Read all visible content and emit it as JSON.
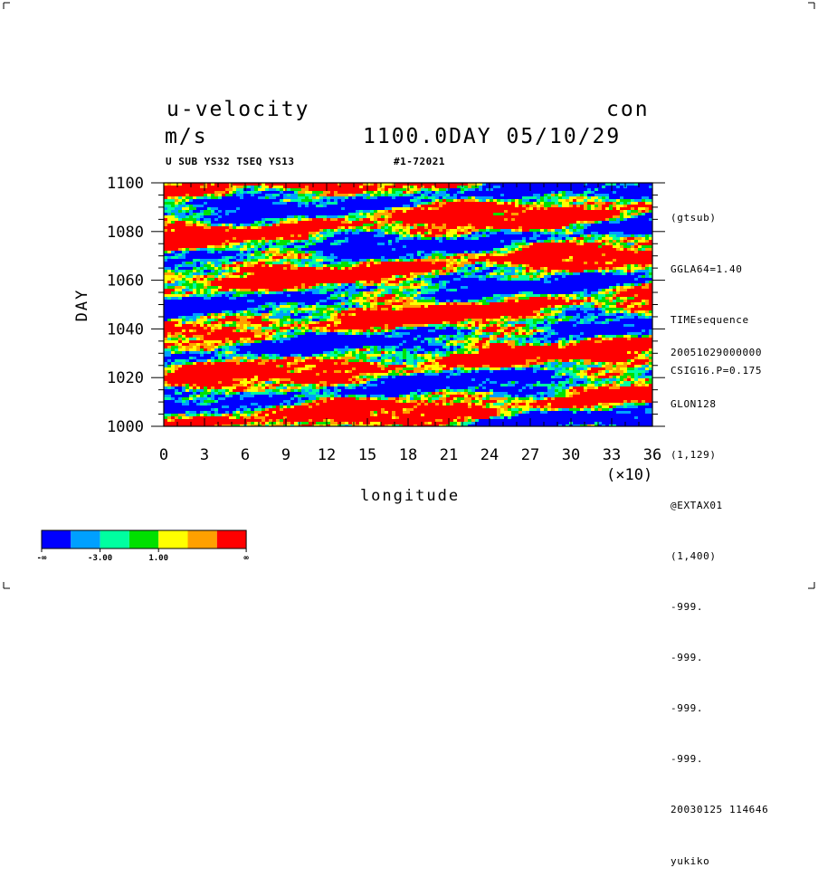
{
  "header": {
    "title": "u-velocity",
    "units": "m/s",
    "kind": "con",
    "time": "1100.0DAY 05/10/29",
    "subtitle": "U SUB YS32 TSEQ YS13",
    "id_code": "#1-72021"
  },
  "side_info": {
    "top": [
      "(gtsub)",
      "GGLA64=1.40",
      "TIMEsequence",
      "CSIG16.P=0.175"
    ],
    "bottom": [
      "20051029000000",
      "GLON128",
      "(1,129)",
      "@EXTAX01",
      "(1,400)",
      "-999.",
      "-999.",
      "-999.",
      "-999.",
      "20030125 114646",
      "yukiko"
    ]
  },
  "colorbar": {
    "colors": [
      "#0000ff",
      "#00a0ff",
      "#00ffa0",
      "#00e000",
      "#ffff00",
      "#ffa000",
      "#ff0000"
    ],
    "labels": [
      "-∞",
      "-3.00",
      "1.00",
      "∞"
    ]
  },
  "chart_data": {
    "type": "heatmap",
    "title": "u-velocity",
    "units": "m/s",
    "xlabel": "longitude",
    "ylabel": "DAY",
    "x_multiplier_label": "(×10)",
    "xlim": [
      0,
      36
    ],
    "ylim": [
      1000,
      1100
    ],
    "x_ticks": [
      "0",
      "3",
      "6",
      "9",
      "12",
      "15",
      "18",
      "21",
      "24",
      "27",
      "30",
      "33",
      "36"
    ],
    "y_ticks": [
      "1000",
      "1020",
      "1040",
      "1060",
      "1080",
      "1100"
    ],
    "color_levels": [
      "-∞",
      "-3.00",
      "1.00",
      "∞"
    ],
    "description_note": "Shaded contour of zonal velocity; alternating eastward (red) and westward (blue) bands tilted across longitude-time."
  },
  "corner_marks": true
}
